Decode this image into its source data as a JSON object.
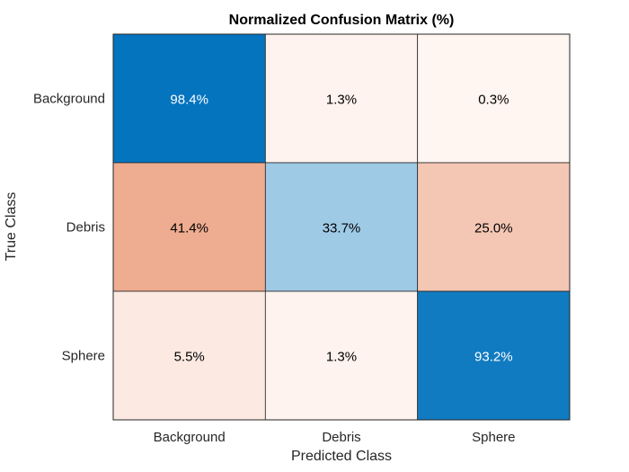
{
  "chart_data": {
    "type": "heatmap",
    "title": "Normalized Confusion Matrix (%)",
    "xlabel": "Predicted Class",
    "ylabel": "True Class",
    "x_categories": [
      "Background",
      "Debris",
      "Sphere"
    ],
    "y_categories": [
      "Background",
      "Debris",
      "Sphere"
    ],
    "values": [
      [
        98.4,
        1.3,
        0.3
      ],
      [
        41.4,
        33.7,
        25.0
      ],
      [
        5.5,
        1.3,
        93.2
      ]
    ],
    "value_labels": [
      [
        "98.4%",
        "1.3%",
        "0.3%"
      ],
      [
        "41.4%",
        "33.7%",
        "25.0%"
      ],
      [
        "5.5%",
        "1.3%",
        "93.2%"
      ]
    ],
    "colors": {
      "diagonal_high": "#0072bd",
      "off_diagonal_high": "#d95319",
      "text_dark": "#000000",
      "text_light": "#ffffff"
    }
  }
}
